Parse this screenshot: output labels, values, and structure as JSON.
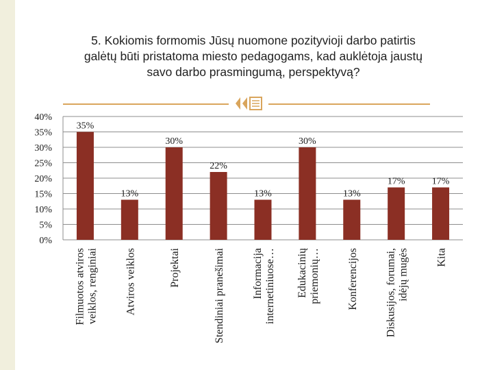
{
  "question": {
    "line1": "5. Kokiomis formomis Jūsų nuomone pozityvioji darbo patirtis",
    "line2": "galėtų būti pristatoma miesto pedagogams, kad auklėtoja jaustų",
    "line3": "savo darbo prasmingumą, perspektyvą?"
  },
  "colors": {
    "bar": "#8b2f24",
    "grid": "#8c8c8c",
    "accent": "#d9a55c",
    "background_strip": "#f1efdd"
  },
  "chart_data": {
    "type": "bar",
    "categories": [
      [
        "Filmuotos atviros",
        "veiklos, renginiai"
      ],
      [
        "Atviros veiklos"
      ],
      [
        "Projektai"
      ],
      [
        "Stendiniai pranešimai"
      ],
      [
        "Informacija",
        "internetiniuose…"
      ],
      [
        "Edukacinių",
        "priemonių…"
      ],
      [
        "Konferencijos"
      ],
      [
        "Diskusijos, forumai,",
        "idėjų mugės"
      ],
      [
        "Kita"
      ]
    ],
    "values": [
      35,
      13,
      30,
      22,
      13,
      30,
      13,
      17,
      17
    ],
    "data_labels": [
      "35%",
      "13%",
      "30%",
      "22%",
      "13%",
      "30%",
      "13%",
      "17%",
      "17%"
    ],
    "y_ticks": [
      "0%",
      "5%",
      "10%",
      "15%",
      "20%",
      "25%",
      "30%",
      "35%",
      "40%"
    ],
    "ylim": [
      0,
      40
    ],
    "grid": true,
    "legend": "none"
  }
}
